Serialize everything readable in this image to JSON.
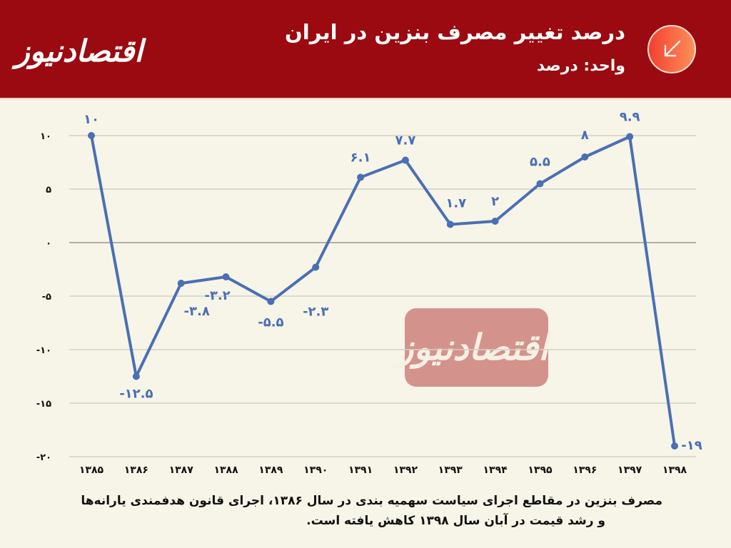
{
  "header": {
    "brand": "اقتصادنیوز",
    "title": "درصد تغییر مصرف بنزین در ایران",
    "subtitle": "واحد: درصد",
    "badge_icon": "arrow-down-left-icon",
    "background_color": "#9a0a10"
  },
  "watermark": {
    "text": "اقتصادنیوز",
    "color": "#d3938c"
  },
  "footnote": {
    "line1": "مصرف بنزین در مقاطع اجرای سیاست سهمیه بندی در سال ۱۳۸۶، اجرای قانون هدفمندی یارانه‌ها",
    "line2": "و رشد قیمت در آبان سال ۱۳۹۸ کاهش یافته است."
  },
  "chart_data": {
    "type": "line",
    "title": "درصد تغییر مصرف بنزین در ایران",
    "subtitle": "واحد: درصد",
    "xlabel": "",
    "ylabel": "درصد",
    "categories": [
      "۱۳۸۵",
      "۱۳۸۶",
      "۱۳۸۷",
      "۱۳۸۸",
      "۱۳۸۹",
      "۱۳۹۰",
      "۱۳۹۱",
      "۱۳۹۲",
      "۱۳۹۳",
      "۱۳۹۴",
      "۱۳۹۵",
      "۱۳۹۶",
      "۱۳۹۷",
      "۱۳۹۸"
    ],
    "categories_latin": [
      "1385",
      "1386",
      "1387",
      "1388",
      "1389",
      "1390",
      "1391",
      "1392",
      "1393",
      "1394",
      "1395",
      "1396",
      "1397",
      "1398"
    ],
    "series": [
      {
        "name": "درصد تغییر مصرف بنزین",
        "color": "#4a6fb5",
        "values": [
          10,
          -12.5,
          -3.8,
          -3.2,
          -5.5,
          -2.3,
          6.1,
          7.7,
          1.7,
          2,
          5.5,
          8,
          9.9,
          -19
        ],
        "labels": [
          "۱۰",
          "-۱۲.۵",
          "-۳.۸",
          "-۳.۲",
          "-۵.۵",
          "-۲.۳",
          "۶.۱",
          "۷.۷",
          "۱.۷",
          "۲",
          "۵.۵",
          "۸",
          "۹.۹",
          "-۱۹"
        ]
      }
    ],
    "yticks": [
      10,
      5,
      0,
      -5,
      -10,
      -15,
      -20
    ],
    "ytick_labels": [
      "۱۰",
      "۵",
      "۰",
      "-۵",
      "-۱۰",
      "-۱۵",
      "-۲۰"
    ],
    "ylim": [
      -20,
      10
    ],
    "grid": true,
    "legend": "none"
  }
}
